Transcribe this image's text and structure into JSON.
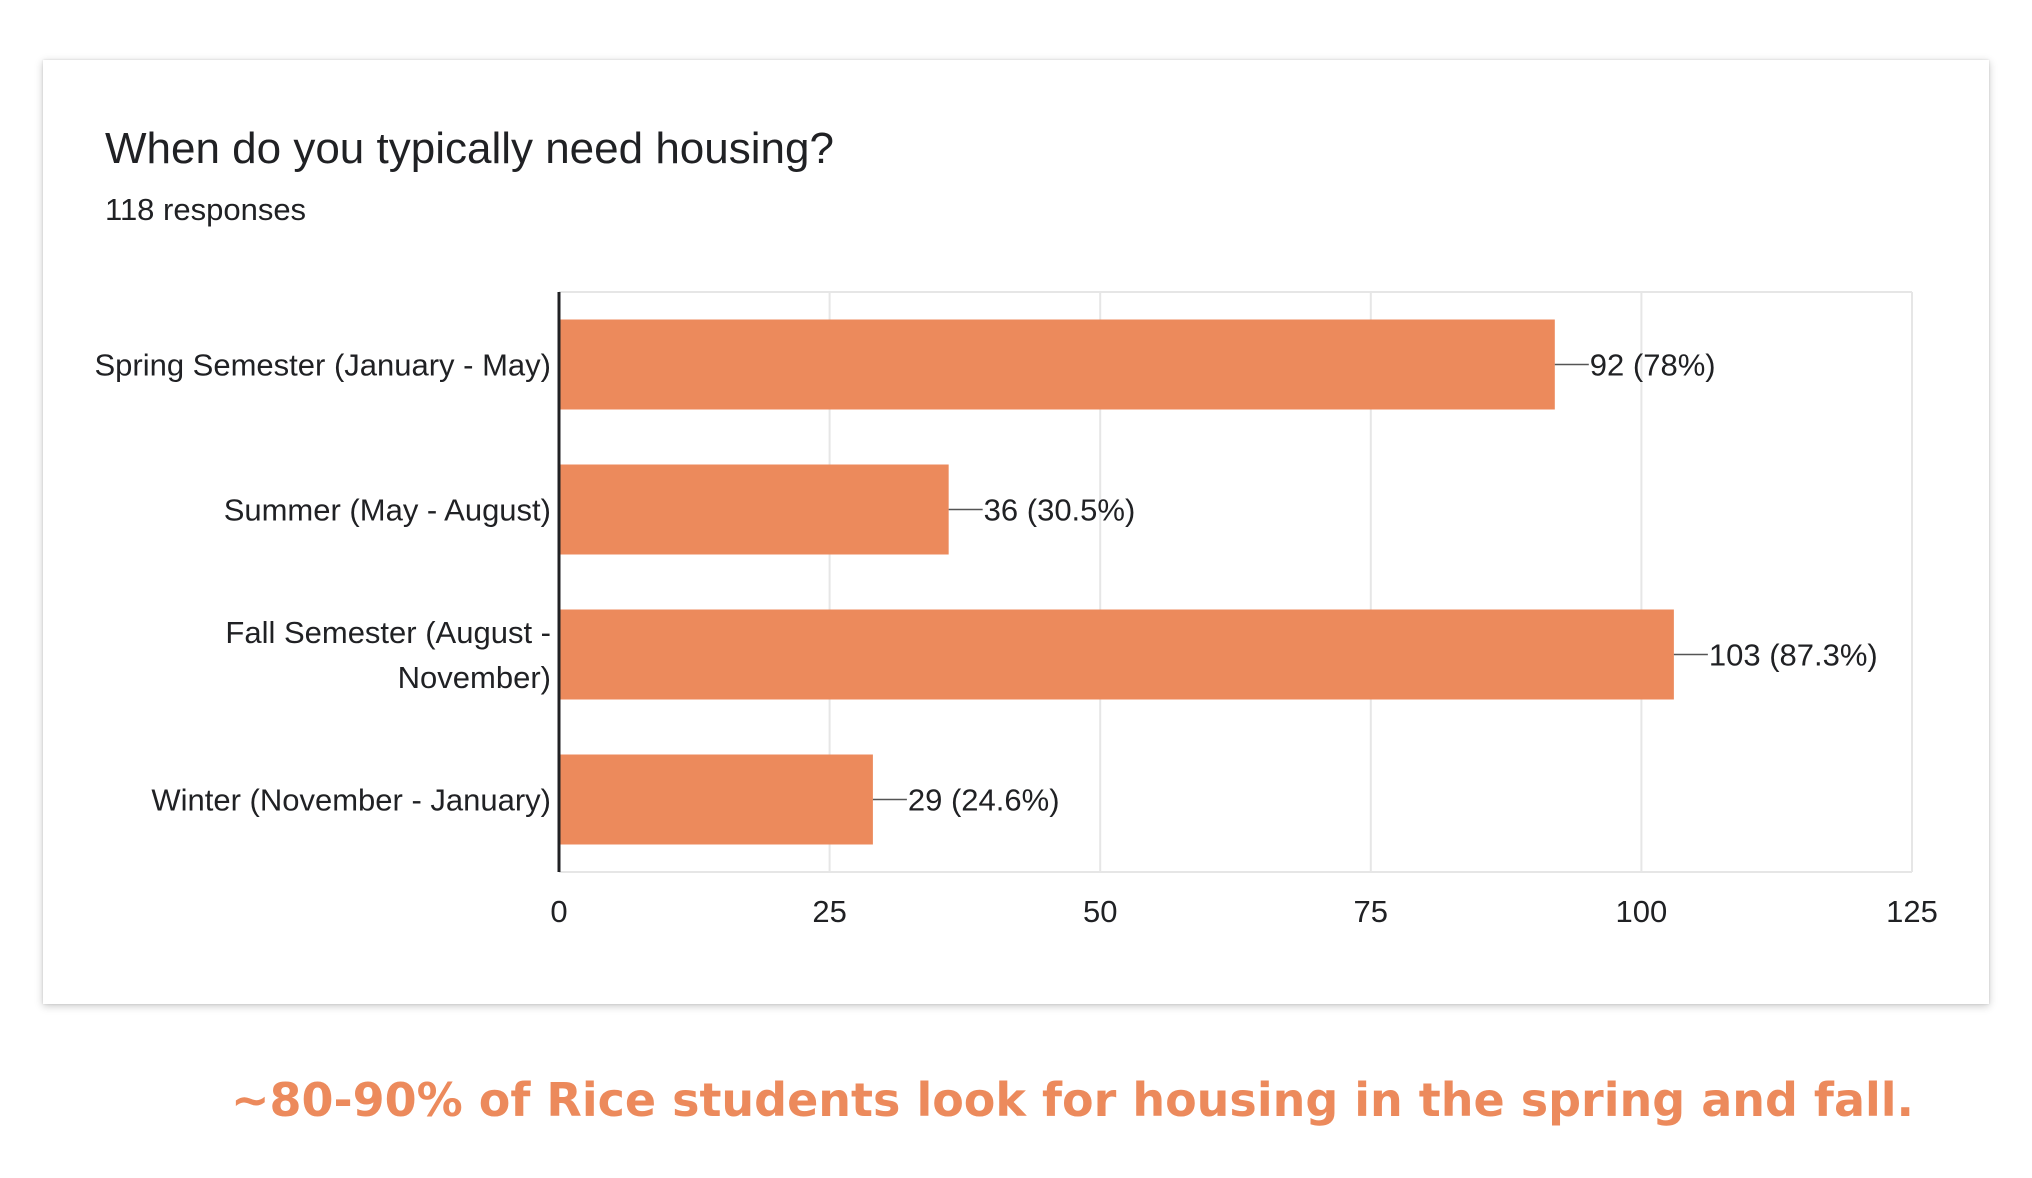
{
  "caption": "~80-90% of Rice students look for housing in the spring and fall.",
  "colors": {
    "bar": "#ec8a5c",
    "grid": "#e6e6e6",
    "axis": "#202124",
    "text": "#202124",
    "caption": "#ec8a5c"
  },
  "chart_data": {
    "type": "bar",
    "orientation": "horizontal",
    "title": "When do you typically need housing?",
    "subtitle": "118 responses",
    "categories": [
      [
        "Spring Semester (January - May)"
      ],
      [
        "Summer (May - August)"
      ],
      [
        "Fall Semester (August -",
        "November)"
      ],
      [
        "Winter (November - January)"
      ]
    ],
    "values": [
      92,
      36,
      103,
      29
    ],
    "data_labels": [
      "92 (78%)",
      "36 (30.5%)",
      "103 (87.3%)",
      "29 (24.6%)"
    ],
    "xlim": [
      0,
      125
    ],
    "xticks": [
      0,
      25,
      50,
      75,
      100,
      125
    ],
    "xtick_labels": [
      "0",
      "25",
      "50",
      "75",
      "100",
      "125"
    ],
    "grid": true,
    "legend": "none"
  }
}
